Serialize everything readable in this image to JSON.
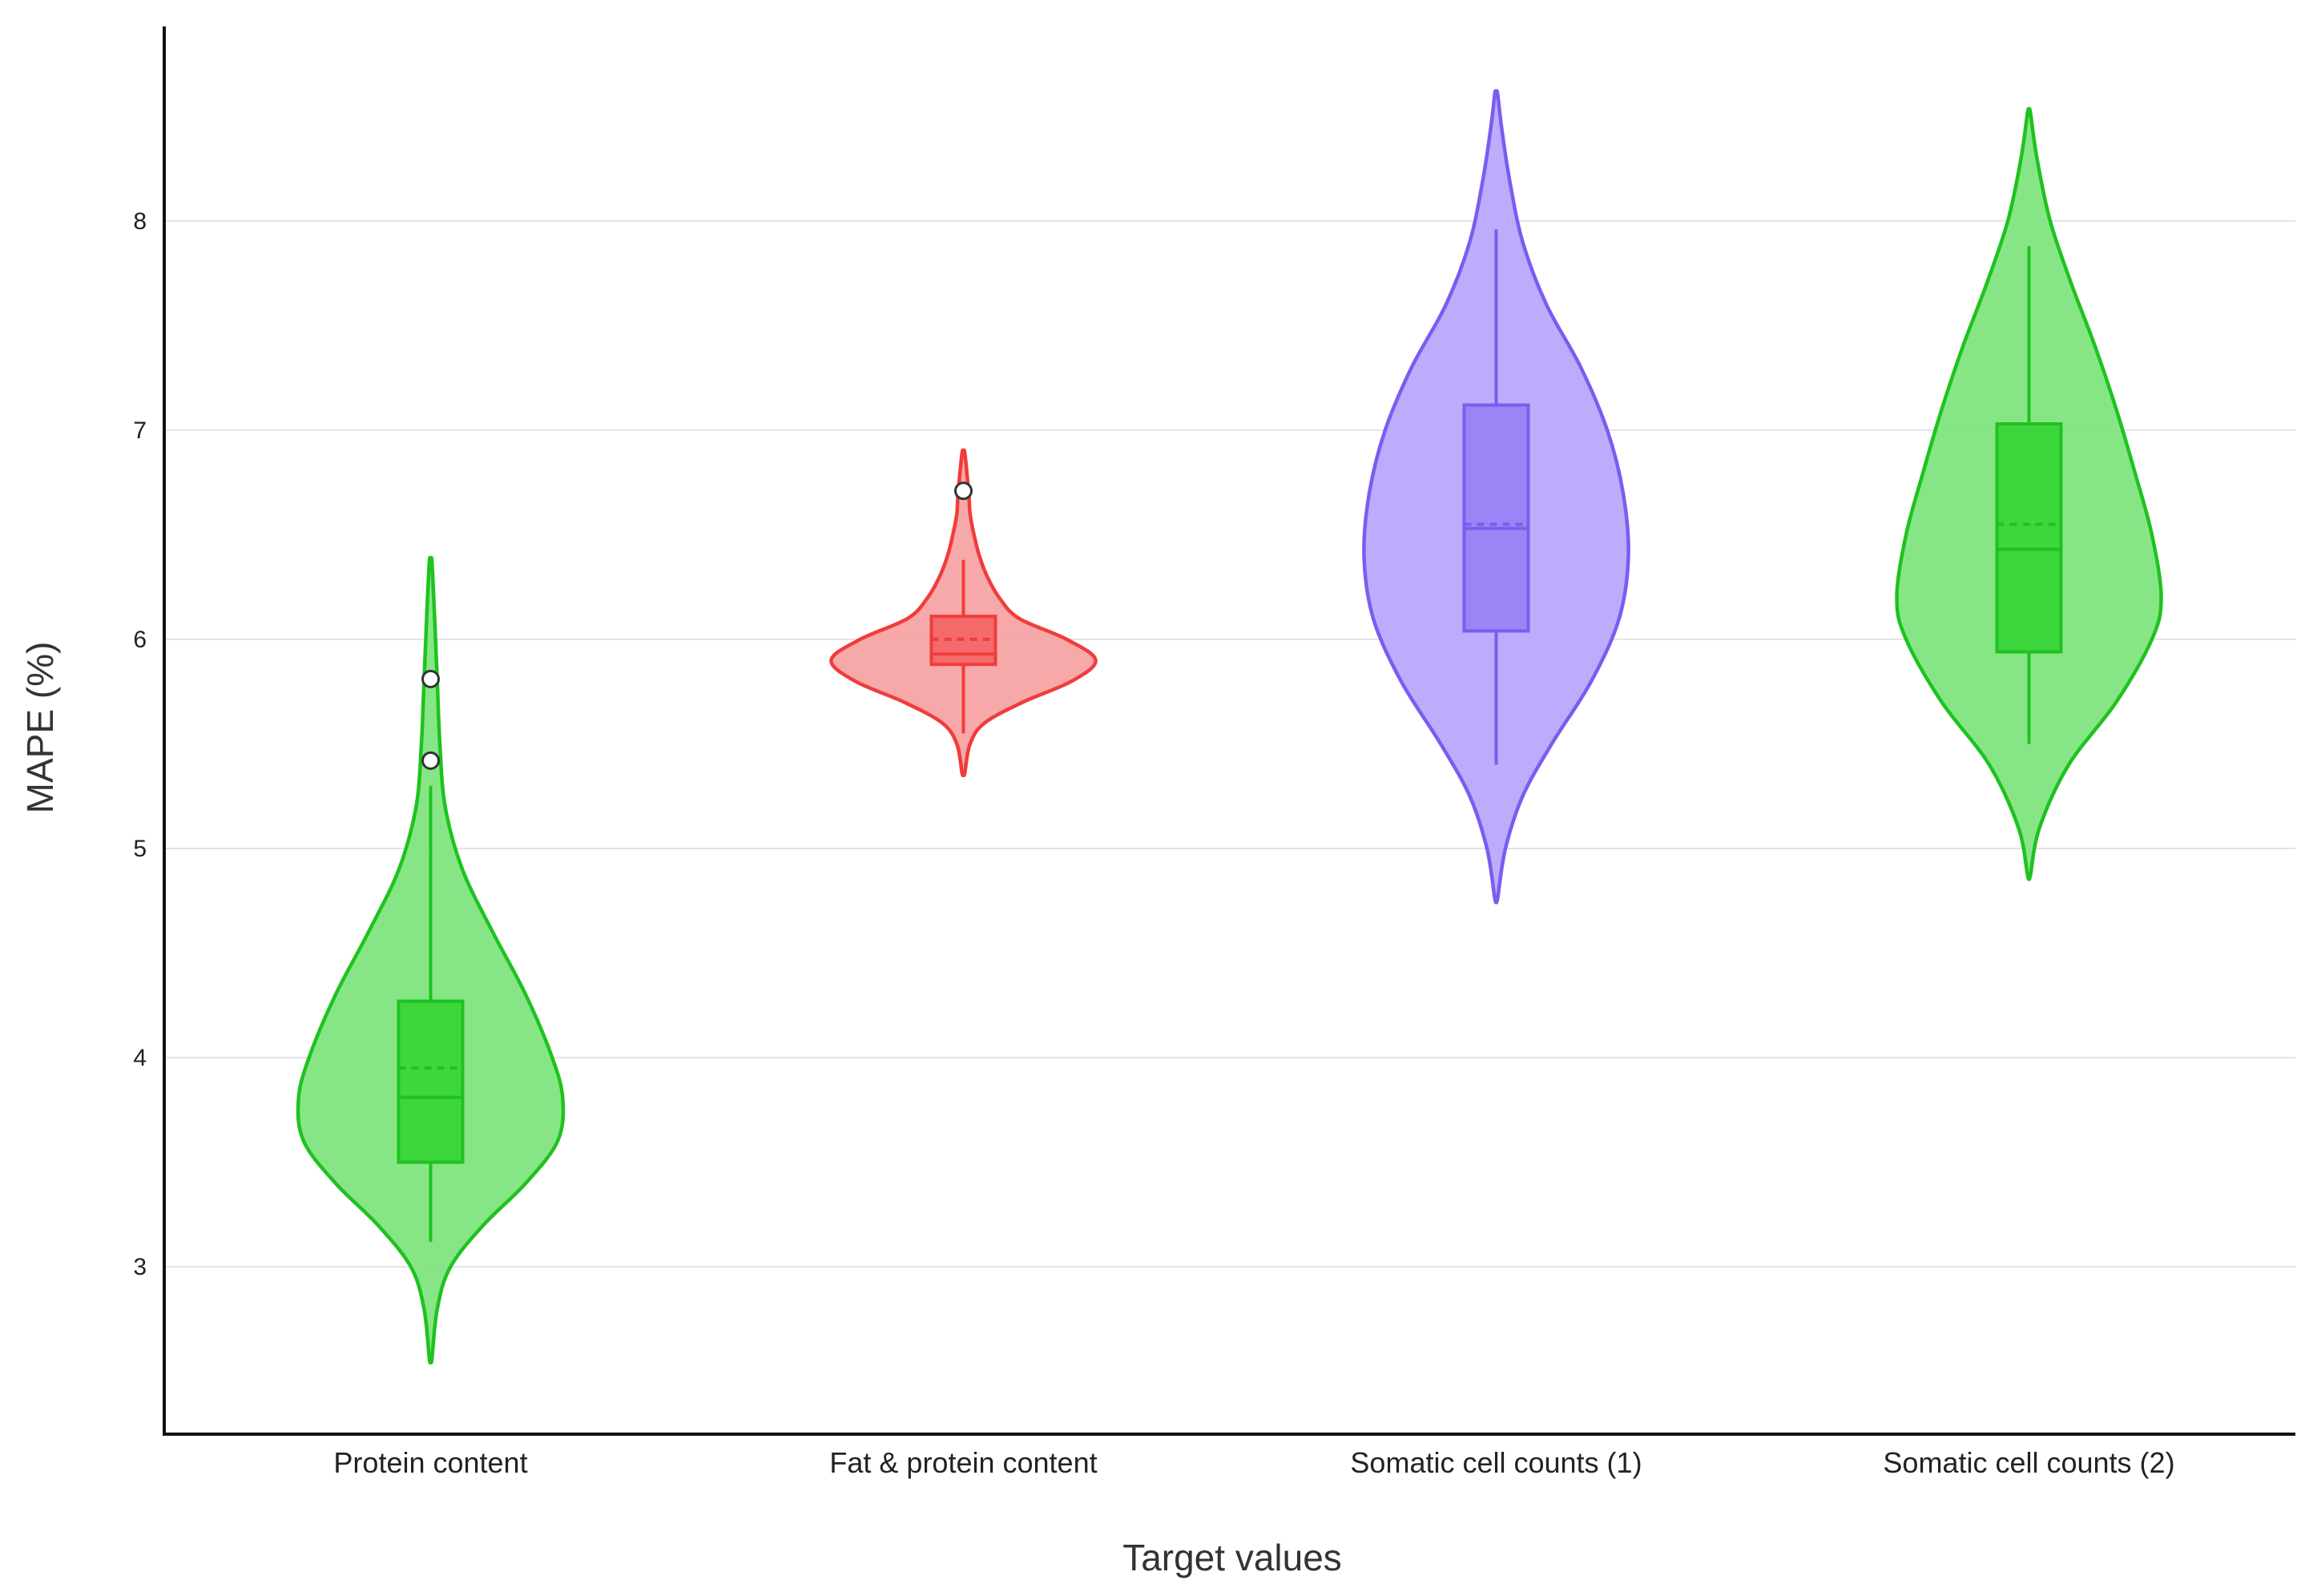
{
  "chart_data": {
    "type": "violin",
    "title": "",
    "xlabel": "Target values",
    "ylabel": "MAPE (%)",
    "ylim": [
      2.2,
      8.93
    ],
    "yticks": [
      3,
      4,
      5,
      6,
      7,
      8
    ],
    "grid": true,
    "categories": [
      "Protein content",
      "Fat & protein content",
      "Somatic cell counts (1)",
      "Somatic cell counts (2)"
    ],
    "series": [
      {
        "name": "Protein content",
        "color": "#1fc21f",
        "fill": "#7fe57f",
        "box_fill": "#3dd63d",
        "violin_range": [
          2.56,
          6.37
        ],
        "density": [
          [
            2.56,
            0.01
          ],
          [
            2.8,
            0.05
          ],
          [
            3.0,
            0.15
          ],
          [
            3.2,
            0.4
          ],
          [
            3.4,
            0.72
          ],
          [
            3.6,
            0.96
          ],
          [
            3.8,
            1.0
          ],
          [
            4.0,
            0.92
          ],
          [
            4.3,
            0.72
          ],
          [
            4.6,
            0.47
          ],
          [
            4.9,
            0.24
          ],
          [
            5.2,
            0.11
          ],
          [
            5.5,
            0.07
          ],
          [
            5.8,
            0.05
          ],
          [
            6.1,
            0.03
          ],
          [
            6.37,
            0.01
          ]
        ],
        "whisker_low": 3.12,
        "q1": 3.5,
        "median": 3.81,
        "mean": 3.95,
        "q3": 4.27,
        "whisker_high": 5.3,
        "outliers": [
          5.42,
          5.81
        ]
      },
      {
        "name": "Fat & protein content",
        "color": "#f03c3c",
        "fill": "#f7a3a3",
        "box_fill": "#f56a6a",
        "violin_range": [
          5.36,
          6.89
        ],
        "density": [
          [
            5.36,
            0.01
          ],
          [
            5.5,
            0.05
          ],
          [
            5.6,
            0.16
          ],
          [
            5.7,
            0.45
          ],
          [
            5.8,
            0.82
          ],
          [
            5.9,
            1.0
          ],
          [
            6.0,
            0.78
          ],
          [
            6.1,
            0.42
          ],
          [
            6.2,
            0.27
          ],
          [
            6.3,
            0.18
          ],
          [
            6.4,
            0.12
          ],
          [
            6.5,
            0.08
          ],
          [
            6.6,
            0.05
          ],
          [
            6.7,
            0.04
          ],
          [
            6.89,
            0.01
          ]
        ],
        "whisker_low": 5.55,
        "q1": 5.88,
        "median": 5.93,
        "mean": 6.0,
        "q3": 6.11,
        "whisker_high": 6.38,
        "outliers": [
          6.71
        ]
      },
      {
        "name": "Somatic cell counts (1)",
        "color": "#7b5cf0",
        "fill": "#b8a8fb",
        "box_fill": "#9b85f6",
        "violin_range": [
          4.76,
          8.61
        ],
        "density": [
          [
            4.76,
            0.01
          ],
          [
            5.0,
            0.07
          ],
          [
            5.25,
            0.2
          ],
          [
            5.5,
            0.42
          ],
          [
            5.8,
            0.72
          ],
          [
            6.1,
            0.93
          ],
          [
            6.4,
            1.0
          ],
          [
            6.7,
            0.96
          ],
          [
            7.0,
            0.84
          ],
          [
            7.3,
            0.64
          ],
          [
            7.6,
            0.38
          ],
          [
            7.9,
            0.2
          ],
          [
            8.2,
            0.1
          ],
          [
            8.45,
            0.04
          ],
          [
            8.61,
            0.01
          ]
        ],
        "whisker_low": 5.4,
        "q1": 6.04,
        "median": 6.53,
        "mean": 6.55,
        "q3": 7.12,
        "whisker_high": 7.96,
        "outliers": []
      },
      {
        "name": "Somatic cell counts (2)",
        "color": "#1fc21f",
        "fill": "#7fe57f",
        "box_fill": "#3dd63d",
        "violin_range": [
          4.87,
          8.52
        ],
        "density": [
          [
            4.87,
            0.01
          ],
          [
            5.1,
            0.08
          ],
          [
            5.4,
            0.3
          ],
          [
            5.7,
            0.66
          ],
          [
            6.0,
            0.93
          ],
          [
            6.2,
            1.0
          ],
          [
            6.5,
            0.93
          ],
          [
            6.8,
            0.8
          ],
          [
            7.1,
            0.66
          ],
          [
            7.4,
            0.5
          ],
          [
            7.7,
            0.32
          ],
          [
            8.0,
            0.16
          ],
          [
            8.3,
            0.06
          ],
          [
            8.52,
            0.01
          ]
        ],
        "whisker_low": 5.5,
        "q1": 5.94,
        "median": 6.43,
        "mean": 6.55,
        "q3": 7.03,
        "whisker_high": 7.88,
        "outliers": []
      }
    ]
  }
}
